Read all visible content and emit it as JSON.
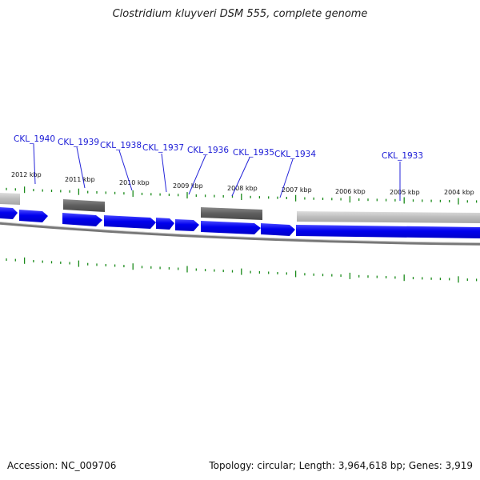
{
  "title": "Clostridium kluyveri DSM 555, complete genome",
  "footer": {
    "accession": "Accession: NC_009706",
    "topology": "Topology: circular; Length: 3,964,618 bp; Genes: 3,919"
  },
  "kbp_labels": [
    "2012 kbp",
    "2011 kbp",
    "2010 kbp",
    "2009 kbp",
    "2008 kbp",
    "2007 kbp",
    "2006 kbp",
    "2005 kbp",
    "2004 kbp"
  ],
  "genes": [
    "CKL_1940",
    "CKL_1939",
    "CKL_1938",
    "CKL_1937",
    "CKL_1936",
    "CKL_1935",
    "CKL_1934",
    "CKL_1933"
  ],
  "colors": {
    "cds": "#0000ee",
    "cds_shade": "#5a5aff",
    "gene_label": "#1a1ad6",
    "tick": "#1a8a1a",
    "dark_feature": "#666666",
    "light_feature": "#bdbdbd",
    "backbone": "#777777"
  }
}
